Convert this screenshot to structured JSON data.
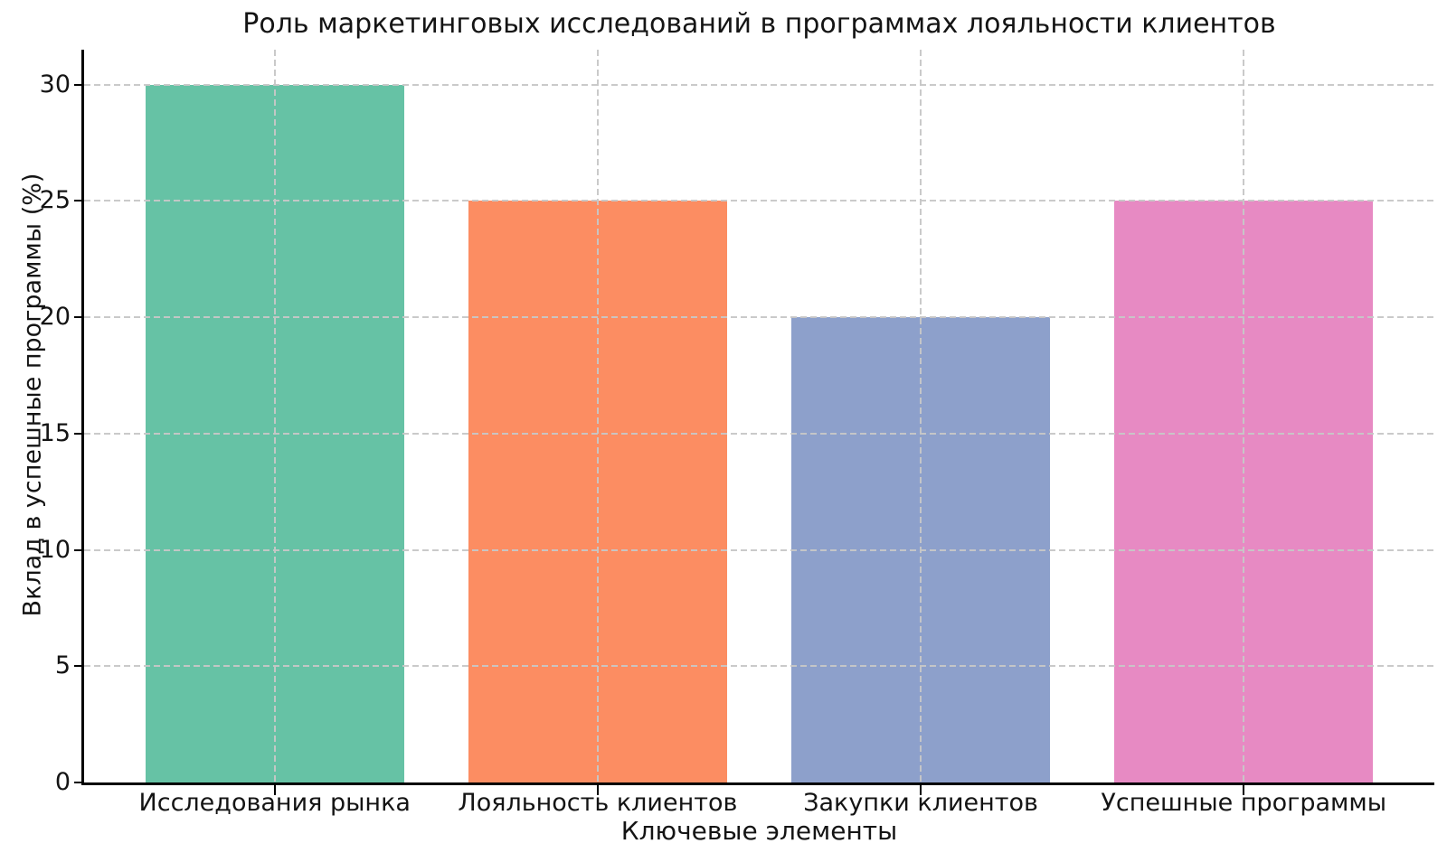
{
  "chart_data": {
    "type": "bar",
    "title": "Роль маркетинговых исследований в программах лояльности клиентов",
    "xlabel": "Ключевые элементы",
    "ylabel": "Вклад в успешные программы (%)",
    "categories": [
      "Исследования рынка",
      "Лояльность клиентов",
      "Закупки клиентов",
      "Успешные программы"
    ],
    "values": [
      30,
      25,
      20,
      25
    ],
    "bar_colors": [
      "#66c2a5",
      "#fc8d62",
      "#8da0cb",
      "#e78ac3"
    ],
    "yticks": [
      0,
      5,
      10,
      15,
      20,
      25,
      30
    ],
    "ylim": [
      0,
      31.5
    ],
    "grid": "dashed gray, horizontal at yticks and vertical at bar centers, drawn over bars",
    "legend": "none"
  },
  "colors": {
    "background": "#ffffff",
    "axis": "#000000",
    "text": "#141414",
    "grid": "#c7c7c7"
  }
}
